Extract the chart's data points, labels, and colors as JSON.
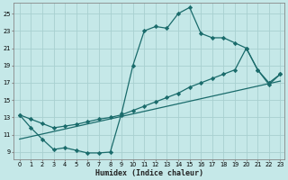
{
  "xlabel": "Humidex (Indice chaleur)",
  "bg_color": "#c5e8e8",
  "grid_color": "#a8d0d0",
  "line_color": "#1a6b6b",
  "xlim": [
    -0.5,
    23.4
  ],
  "ylim": [
    8.2,
    26.2
  ],
  "xticks": [
    0,
    1,
    2,
    3,
    4,
    5,
    6,
    7,
    8,
    9,
    10,
    11,
    12,
    13,
    14,
    15,
    16,
    17,
    18,
    19,
    20,
    21,
    22,
    23
  ],
  "yticks": [
    9,
    11,
    13,
    15,
    17,
    19,
    21,
    23,
    25
  ],
  "line1_x": [
    0,
    1,
    2,
    3,
    4,
    5,
    6,
    7,
    8,
    9,
    10,
    11,
    12,
    13,
    14,
    15,
    16,
    17,
    18,
    19,
    20,
    21,
    22,
    23
  ],
  "line1_y": [
    13.3,
    11.8,
    10.5,
    9.3,
    9.5,
    9.2,
    8.9,
    8.9,
    9.0,
    13.5,
    19.0,
    23.0,
    23.5,
    23.3,
    25.0,
    25.7,
    22.7,
    22.2,
    22.2,
    21.6,
    21.0,
    18.5,
    16.8,
    18.0
  ],
  "line2_x": [
    0,
    1,
    2,
    3,
    4,
    5,
    6,
    7,
    8,
    9,
    10,
    11,
    12,
    13,
    14,
    15,
    16,
    17,
    18,
    19,
    20,
    21,
    22,
    23
  ],
  "line2_y": [
    13.3,
    12.8,
    12.3,
    11.8,
    12.0,
    12.2,
    12.5,
    12.8,
    13.0,
    13.3,
    13.8,
    14.3,
    14.8,
    15.3,
    15.8,
    16.5,
    17.0,
    17.5,
    18.0,
    18.5,
    21.0,
    18.5,
    17.0,
    18.0
  ],
  "line3_x": [
    0,
    23
  ],
  "line3_y": [
    10.5,
    17.2
  ],
  "marker": "D",
  "markersize": 2.2,
  "linewidth": 0.9
}
